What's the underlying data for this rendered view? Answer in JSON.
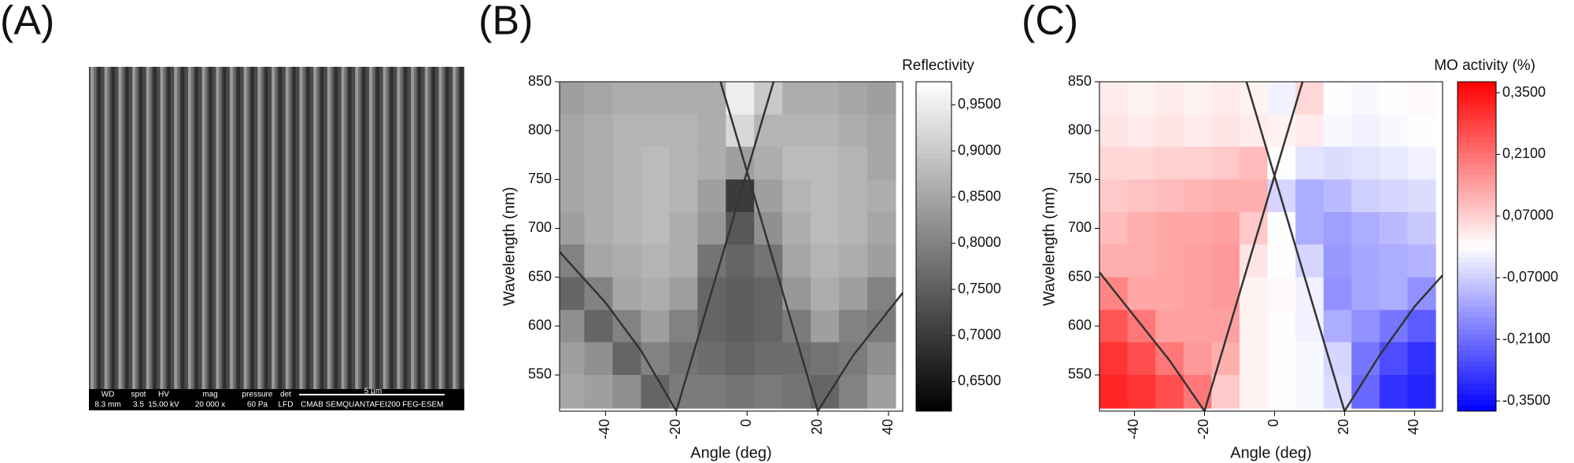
{
  "labels": [
    "(A)",
    "(B)",
    "(C)"
  ],
  "sem_info": {
    "fields": [
      {
        "label": "WD",
        "value": "8.3 mm"
      },
      {
        "label": "spot",
        "value": "3.5"
      },
      {
        "label": "HV",
        "value": "15.00 kV"
      },
      {
        "label": "mag",
        "value": "20 000 x"
      },
      {
        "label": "pressure",
        "value": "60 Pa"
      },
      {
        "label": "det",
        "value": "LFD"
      }
    ],
    "scale": "5 µm",
    "lab": "CMAB SEMQUANTAFEI200 FEG-ESEM"
  },
  "chart_data": [
    {
      "type": "heatmap",
      "colorbar_title": "Reflectivity",
      "xlabel": "Angle (deg)",
      "ylabel": "Wavelength (nm)",
      "colormap": "gray",
      "xlim": [
        -53,
        44
      ],
      "ylim": [
        513,
        850
      ],
      "xticks": [
        -40,
        -20,
        0,
        20,
        40
      ],
      "yticks": [
        550,
        600,
        650,
        700,
        750,
        800,
        850
      ],
      "zlim": [
        0.618,
        0.975
      ],
      "zticks": [
        {
          "value": 0.65,
          "label": "0,6500"
        },
        {
          "value": 0.7,
          "label": "0,7000"
        },
        {
          "value": 0.75,
          "label": "0,7500"
        },
        {
          "value": 0.8,
          "label": "0,8000"
        },
        {
          "value": 0.85,
          "label": "0,8500"
        },
        {
          "value": 0.9,
          "label": "0,9000"
        },
        {
          "value": 0.95,
          "label": "0,9500"
        }
      ],
      "x": [
        -50,
        -42,
        -34,
        -26,
        -18,
        -10,
        -2,
        6,
        14,
        22,
        30,
        38
      ],
      "y": [
        833,
        800,
        767,
        733,
        700,
        667,
        633,
        600,
        567,
        533
      ],
      "z": [
        [
          0.84,
          0.85,
          0.86,
          0.86,
          0.86,
          0.86,
          0.95,
          0.9,
          0.86,
          0.86,
          0.85,
          0.84
        ],
        [
          0.85,
          0.86,
          0.87,
          0.87,
          0.87,
          0.86,
          0.92,
          0.87,
          0.87,
          0.87,
          0.86,
          0.85
        ],
        [
          0.85,
          0.86,
          0.87,
          0.88,
          0.87,
          0.86,
          0.84,
          0.86,
          0.88,
          0.88,
          0.87,
          0.85
        ],
        [
          0.85,
          0.86,
          0.87,
          0.88,
          0.87,
          0.84,
          0.7,
          0.84,
          0.87,
          0.88,
          0.87,
          0.86
        ],
        [
          0.84,
          0.86,
          0.87,
          0.88,
          0.86,
          0.83,
          0.74,
          0.82,
          0.86,
          0.88,
          0.87,
          0.85
        ],
        [
          0.8,
          0.85,
          0.86,
          0.87,
          0.86,
          0.78,
          0.76,
          0.78,
          0.85,
          0.87,
          0.86,
          0.84
        ],
        [
          0.76,
          0.8,
          0.85,
          0.86,
          0.84,
          0.76,
          0.75,
          0.76,
          0.83,
          0.86,
          0.84,
          0.8
        ],
        [
          0.82,
          0.76,
          0.8,
          0.84,
          0.8,
          0.76,
          0.75,
          0.76,
          0.79,
          0.84,
          0.8,
          0.79
        ],
        [
          0.84,
          0.82,
          0.76,
          0.8,
          0.78,
          0.77,
          0.76,
          0.77,
          0.77,
          0.78,
          0.79,
          0.82
        ],
        [
          0.85,
          0.84,
          0.82,
          0.76,
          0.79,
          0.79,
          0.78,
          0.79,
          0.78,
          0.76,
          0.8,
          0.84
        ]
      ],
      "curves": [
        {
          "x": [
            -20,
            7.5
          ],
          "y": [
            513,
            850
          ]
        },
        {
          "x": [
            20,
            -7.5
          ],
          "y": [
            513,
            850
          ]
        },
        {
          "x": [
            -53,
            -40,
            -30,
            -20
          ],
          "y": [
            676,
            624,
            575,
            513
          ]
        },
        {
          "x": [
            20,
            30,
            44
          ],
          "y": [
            513,
            570,
            634
          ]
        }
      ]
    },
    {
      "type": "heatmap",
      "colorbar_title": "MO activity (%)",
      "xlabel": "Angle (deg)",
      "ylabel": "Wavelength (nm)",
      "colormap": "bwr",
      "xlim": [
        -50,
        48
      ],
      "ylim": [
        513,
        850
      ],
      "xticks": [
        -40,
        -20,
        0,
        20,
        40
      ],
      "yticks": [
        550,
        600,
        650,
        700,
        750,
        800,
        850
      ],
      "zlim": [
        -0.373,
        0.375
      ],
      "zticks": [
        {
          "value": -0.35,
          "label": "-0,3500"
        },
        {
          "value": -0.21,
          "label": "-0,2100"
        },
        {
          "value": -0.07,
          "label": "-0,07000"
        },
        {
          "value": 0.07,
          "label": "0,07000"
        },
        {
          "value": 0.21,
          "label": "0,2100"
        },
        {
          "value": 0.35,
          "label": "0,3500"
        }
      ],
      "x": [
        -46,
        -38,
        -30,
        -22,
        -14,
        -6,
        2,
        10,
        18,
        26,
        34,
        42
      ],
      "y": [
        833,
        800,
        767,
        733,
        700,
        667,
        633,
        600,
        567,
        533
      ],
      "z": [
        [
          0.03,
          0.02,
          0.03,
          0.02,
          0.03,
          0.02,
          -0.02,
          0.06,
          0.0,
          -0.01,
          0.0,
          0.01
        ],
        [
          0.04,
          0.03,
          0.04,
          0.03,
          0.04,
          0.03,
          0.02,
          0.03,
          -0.01,
          -0.02,
          -0.01,
          0.0
        ],
        [
          0.06,
          0.06,
          0.07,
          0.07,
          0.08,
          0.1,
          0.0,
          -0.04,
          -0.05,
          -0.04,
          -0.03,
          -0.02
        ],
        [
          0.08,
          0.09,
          0.1,
          0.11,
          0.12,
          0.12,
          -0.06,
          -0.12,
          -0.1,
          -0.07,
          -0.06,
          -0.05
        ],
        [
          0.1,
          0.12,
          0.13,
          0.13,
          0.14,
          0.08,
          0.0,
          -0.12,
          -0.14,
          -0.12,
          -0.1,
          -0.08
        ],
        [
          0.12,
          0.12,
          0.13,
          0.14,
          0.15,
          0.04,
          0.0,
          -0.06,
          -0.15,
          -0.13,
          -0.12,
          -0.11
        ],
        [
          0.18,
          0.13,
          0.13,
          0.14,
          0.15,
          0.02,
          0.01,
          -0.02,
          -0.16,
          -0.13,
          -0.12,
          -0.16
        ],
        [
          0.25,
          0.2,
          0.14,
          0.14,
          0.14,
          0.02,
          0.0,
          -0.02,
          -0.12,
          -0.16,
          -0.2,
          -0.24
        ],
        [
          0.3,
          0.26,
          0.2,
          0.15,
          0.12,
          0.02,
          0.0,
          -0.01,
          -0.06,
          -0.2,
          -0.26,
          -0.3
        ],
        [
          0.32,
          0.3,
          0.26,
          0.2,
          0.08,
          0.02,
          0.0,
          -0.01,
          -0.05,
          -0.22,
          -0.3,
          -0.32
        ]
      ],
      "curves": [
        {
          "x": [
            -20,
            8
          ],
          "y": [
            513,
            850
          ]
        },
        {
          "x": [
            20,
            -8
          ],
          "y": [
            513,
            850
          ]
        },
        {
          "x": [
            -50,
            -40,
            -30,
            -20
          ],
          "y": [
            655,
            610,
            565,
            513
          ]
        },
        {
          "x": [
            20,
            30,
            40,
            48
          ],
          "y": [
            513,
            570,
            620,
            652
          ]
        }
      ]
    }
  ]
}
